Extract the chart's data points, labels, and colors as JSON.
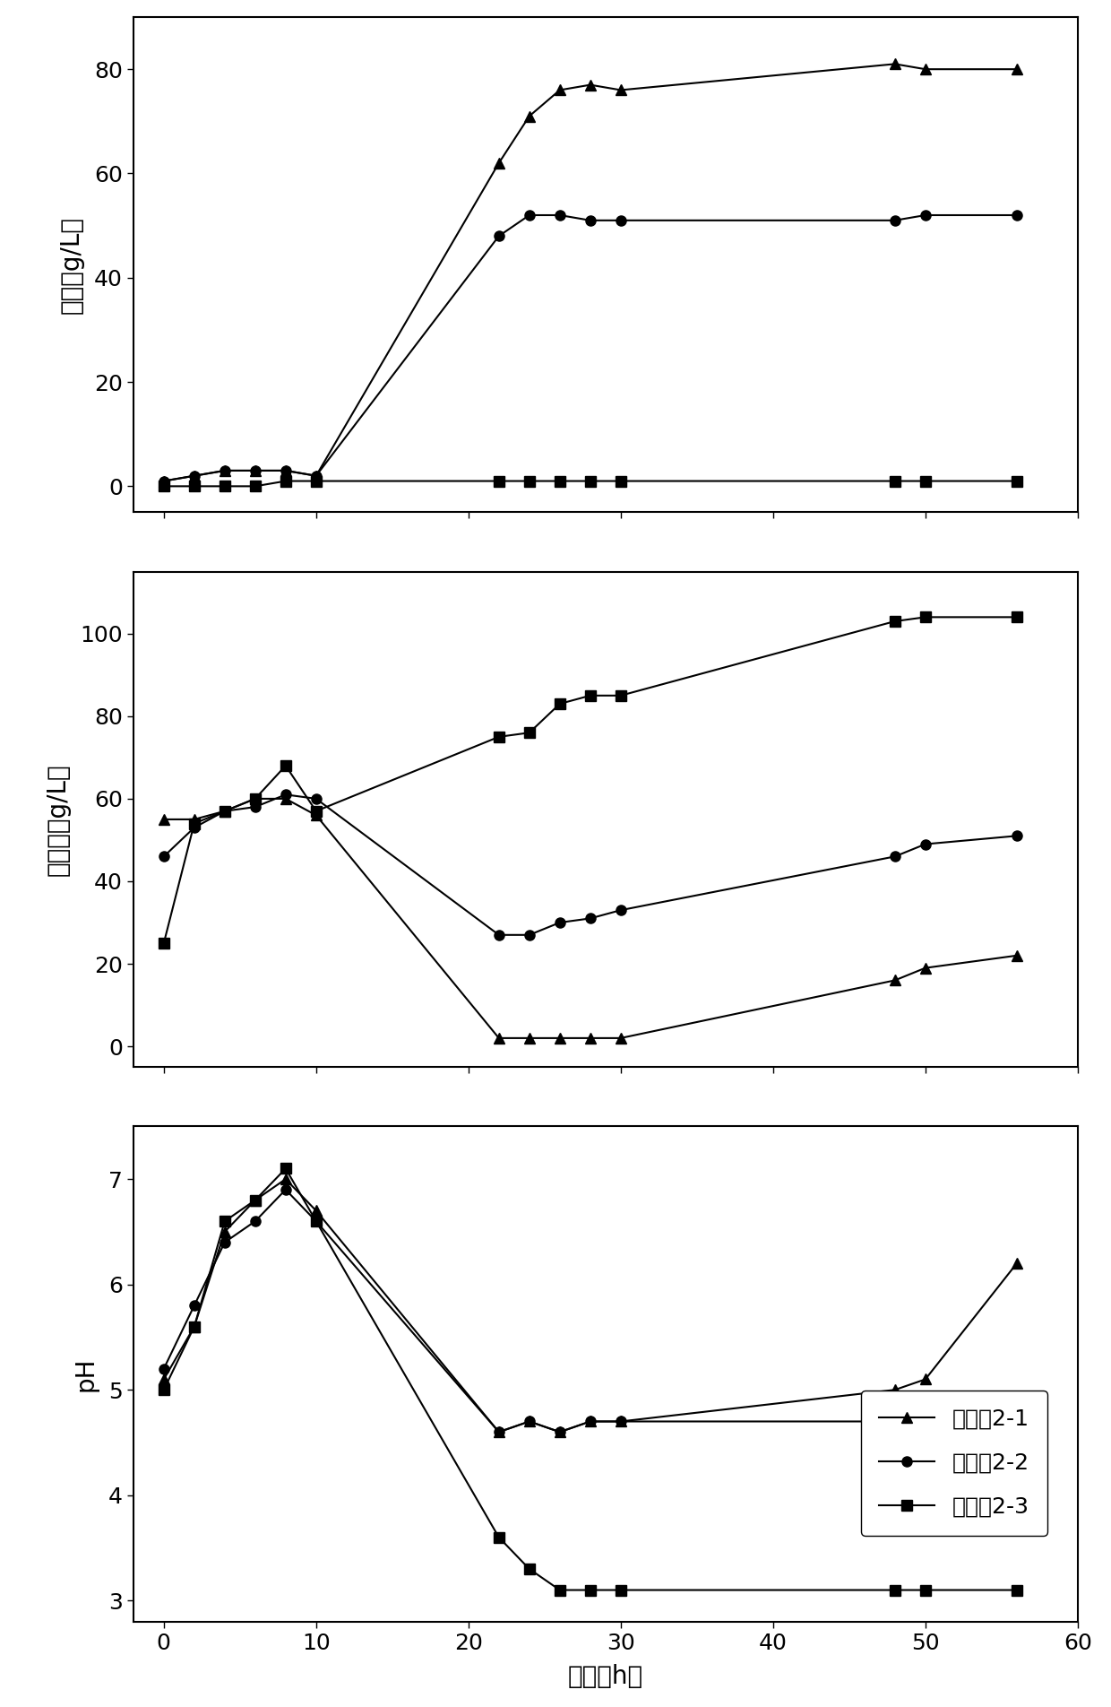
{
  "panel1": {
    "ylabel": "乙醇（g/L）",
    "ylim": [
      -5,
      90
    ],
    "yticks": [
      0,
      20,
      40,
      60,
      80
    ],
    "series": {
      "2-1": {
        "x": [
          0,
          2,
          4,
          6,
          8,
          10,
          22,
          24,
          26,
          28,
          30,
          48,
          50,
          56
        ],
        "y": [
          1,
          2,
          3,
          3,
          3,
          2,
          62,
          71,
          76,
          77,
          76,
          81,
          80,
          80
        ],
        "marker": "^"
      },
      "2-2": {
        "x": [
          0,
          2,
          4,
          6,
          8,
          10,
          22,
          24,
          26,
          28,
          30,
          48,
          50,
          56
        ],
        "y": [
          1,
          2,
          3,
          3,
          3,
          2,
          48,
          52,
          52,
          51,
          51,
          51,
          52,
          52
        ],
        "marker": "o"
      },
      "2-3": {
        "x": [
          0,
          2,
          4,
          6,
          8,
          10,
          22,
          24,
          26,
          28,
          30,
          48,
          50,
          56
        ],
        "y": [
          0,
          0,
          0,
          0,
          1,
          1,
          1,
          1,
          1,
          1,
          1,
          1,
          1,
          1
        ],
        "marker": "s"
      }
    }
  },
  "panel2": {
    "ylabel": "葡萄糖（g/L）",
    "ylim": [
      -5,
      115
    ],
    "yticks": [
      0,
      20,
      40,
      60,
      80,
      100
    ],
    "series": {
      "2-1": {
        "x": [
          0,
          2,
          4,
          6,
          8,
          10,
          22,
          24,
          26,
          28,
          30,
          48,
          50,
          56
        ],
        "y": [
          55,
          55,
          57,
          60,
          60,
          56,
          2,
          2,
          2,
          2,
          2,
          16,
          19,
          22
        ],
        "marker": "^"
      },
      "2-2": {
        "x": [
          0,
          2,
          4,
          6,
          8,
          10,
          22,
          24,
          26,
          28,
          30,
          48,
          50,
          56
        ],
        "y": [
          46,
          53,
          57,
          58,
          61,
          60,
          27,
          27,
          30,
          31,
          33,
          46,
          49,
          51
        ],
        "marker": "o"
      },
      "2-3": {
        "x": [
          0,
          2,
          4,
          6,
          8,
          10,
          22,
          24,
          26,
          28,
          30,
          48,
          50,
          56
        ],
        "y": [
          25,
          54,
          57,
          60,
          68,
          57,
          75,
          76,
          83,
          85,
          85,
          103,
          104,
          104
        ],
        "marker": "s"
      }
    }
  },
  "panel3": {
    "ylabel": "pH",
    "ylim": [
      2.8,
      7.5
    ],
    "yticks": [
      3,
      4,
      5,
      6,
      7
    ],
    "series": {
      "2-1": {
        "x": [
          0,
          2,
          4,
          6,
          8,
          10,
          22,
          24,
          26,
          28,
          30,
          48,
          50,
          56
        ],
        "y": [
          5.1,
          5.6,
          6.5,
          6.8,
          7.0,
          6.7,
          4.6,
          4.7,
          4.6,
          4.7,
          4.7,
          5.0,
          5.1,
          6.2
        ],
        "marker": "^"
      },
      "2-2": {
        "x": [
          0,
          2,
          4,
          6,
          8,
          10,
          22,
          24,
          26,
          28,
          30,
          48,
          50,
          56
        ],
        "y": [
          5.2,
          5.8,
          6.4,
          6.6,
          6.9,
          6.6,
          4.6,
          4.7,
          4.6,
          4.7,
          4.7,
          4.7,
          4.8,
          4.8
        ],
        "marker": "o"
      },
      "2-3": {
        "x": [
          0,
          2,
          4,
          6,
          8,
          10,
          22,
          24,
          26,
          28,
          30,
          48,
          50,
          56
        ],
        "y": [
          5.0,
          5.6,
          6.6,
          6.8,
          7.1,
          6.6,
          3.6,
          3.3,
          3.1,
          3.1,
          3.1,
          3.1,
          3.1,
          3.1
        ],
        "marker": "s"
      }
    }
  },
  "xlim": [
    -2,
    60
  ],
  "xticks": [
    0,
    10,
    20,
    30,
    40,
    50,
    60
  ],
  "xlabel": "时间（h）",
  "legend_labels": [
    "实施例2-1",
    "实施例2-2",
    "实施例2-3"
  ],
  "marker_size": 8,
  "linewidth": 1.5,
  "color": "black",
  "figure_width": 12.4,
  "figure_height": 19.04,
  "dpi": 100
}
